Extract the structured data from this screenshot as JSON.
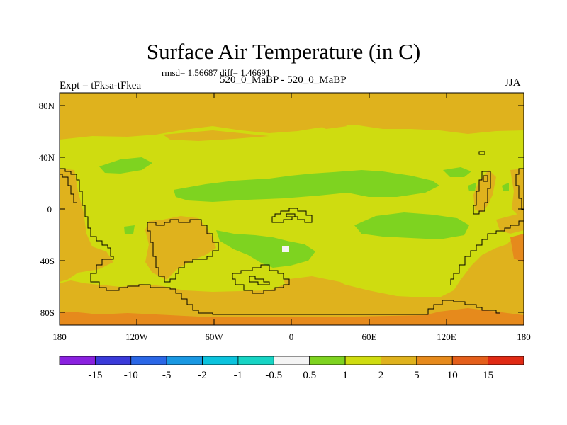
{
  "title": "Surface Air Temperature (in C)",
  "stats": "rmsd= 1.56687 diff= 1.46691",
  "expt_label": "Expt = tFksa-tFkea",
  "subtitle": "520_0_MaBP - 520_0_MaBP",
  "season": "JJA",
  "map": {
    "lat_ticks": [
      "80N",
      "40N",
      "0",
      "40S",
      "80S"
    ],
    "lon_ticks": [
      "180",
      "120W",
      "60W",
      "0",
      "60E",
      "120E",
      "180"
    ],
    "colors": {
      "v0_5_1": "#7ed320",
      "v1_2": "#cfdc10",
      "v2_5": "#dfb21d",
      "v5_10": "#e68a1c",
      "coast": "#000000"
    }
  },
  "colorbar": {
    "labels": [
      "-15",
      "-10",
      "-5",
      "-2",
      "-1",
      "-0.5",
      "0.5",
      "1",
      "2",
      "5",
      "10",
      "15"
    ],
    "colors": [
      "#8a21df",
      "#3a3ad9",
      "#2b67e6",
      "#1a98e2",
      "#0cc3dd",
      "#17d4c4",
      "#f4f4f4",
      "#7ed320",
      "#cfdc10",
      "#dfb21d",
      "#e68a1c",
      "#e45f1b",
      "#e02a14"
    ]
  }
}
